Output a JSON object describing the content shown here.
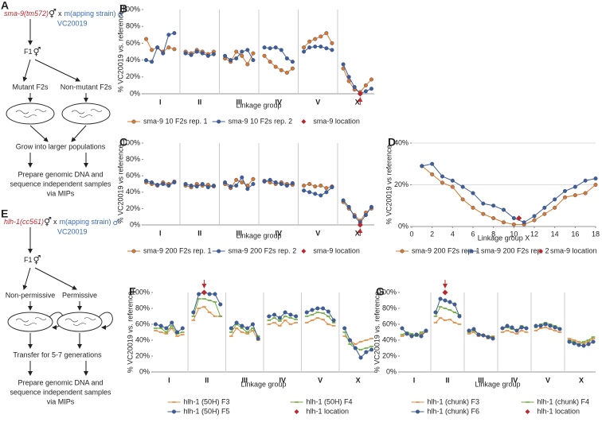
{
  "diagrams": [
    {
      "panel": "A",
      "strain": "sma-9(tm572)",
      "herm_symbol": "⚥",
      "cross": "x",
      "mapping": "m(apping strain)",
      "male_symbol": "♂",
      "mapping_strain": "VC20019",
      "f1": "F1",
      "left": "Mutant F2s",
      "right": "Non-mutant F2s",
      "step1": "Grow into larger populations",
      "step2": [
        "Prepare genomic DNA and",
        "sequence independent samples",
        "via MIPs"
      ]
    },
    {
      "panel": "E",
      "strain": "hlh-1(cc561)",
      "herm_symbol": "⚥",
      "cross": "x",
      "mapping": "m(apping strain)",
      "male_symbol": "♂",
      "mapping_strain": "VC20019",
      "f1": "F1",
      "left": "Non-permissive",
      "right": "Permissive",
      "step1": "Transfer for 5-7 generations",
      "step2": [
        "Prepare genomic DNA and",
        "sequence independent samples",
        "via MIPs"
      ]
    }
  ],
  "chart_data": [
    {
      "panel": "B",
      "type": "line",
      "ylabel": "% VC20019 vs. reference",
      "xlabel": "Linkage group",
      "groups": [
        "I",
        "II",
        "III",
        "IV",
        "V",
        "X"
      ],
      "ylim": [
        0,
        100
      ],
      "yticks": [
        {
          "value": 0,
          "label": "0%"
        },
        {
          "value": 20,
          "label": "20%"
        },
        {
          "value": 40,
          "label": "40%"
        },
        {
          "value": 60,
          "label": "60%"
        },
        {
          "value": 80,
          "label": "80%"
        },
        {
          "value": 100,
          "label": "100%"
        }
      ],
      "grid": false,
      "series": [
        {
          "name": "sma-9 10 F2s rep. 1",
          "color": "#d9772b",
          "marker": "circle",
          "values": [
            65,
            52,
            55,
            50,
            55,
            53,
            null,
            50,
            48,
            52,
            50,
            47,
            50,
            null,
            42,
            38,
            50,
            45,
            35,
            48,
            null,
            45,
            38,
            32,
            28,
            25,
            30,
            null,
            55,
            62,
            65,
            68,
            72,
            60,
            null,
            30,
            15,
            5,
            2,
            10,
            17
          ]
        },
        {
          "name": "sma-9 10 F2s rep. 2",
          "color": "#3f5e98",
          "marker": "circle",
          "values": [
            40,
            38,
            55,
            48,
            70,
            72,
            null,
            48,
            46,
            50,
            48,
            45,
            47,
            null,
            45,
            40,
            42,
            50,
            52,
            40,
            null,
            55,
            54,
            55,
            52,
            42,
            38,
            null,
            50,
            55,
            56,
            56,
            54,
            52,
            null,
            35,
            20,
            8,
            0,
            3,
            6
          ]
        },
        {
          "name": "sma-9 location",
          "color": "#b8282e",
          "marker": "diamond",
          "x": [
            38
          ],
          "values": [
            0
          ]
        }
      ]
    },
    {
      "panel": "C",
      "type": "line",
      "ylabel": "% VC20019 vs reference",
      "xlabel": "Linkage group",
      "groups": [
        "I",
        "II",
        "III",
        "IV",
        "V",
        "X"
      ],
      "ylim": [
        0,
        100
      ],
      "yticks": [
        {
          "value": 0,
          "label": "0%"
        },
        {
          "value": 20,
          "label": "20%"
        },
        {
          "value": 40,
          "label": "40%"
        },
        {
          "value": 60,
          "label": "60%"
        },
        {
          "value": 80,
          "label": "80%"
        },
        {
          "value": 100,
          "label": "100%"
        }
      ],
      "grid": false,
      "series": [
        {
          "name": "sma-9 200 F2s rep. 1",
          "color": "#d9772b",
          "marker": "circle",
          "values": [
            52,
            50,
            48,
            52,
            50,
            53,
            null,
            48,
            46,
            50,
            48,
            49,
            47,
            null,
            50,
            45,
            55,
            52,
            48,
            56,
            null,
            54,
            52,
            50,
            52,
            50,
            49,
            null,
            48,
            50,
            47,
            48,
            45,
            47,
            null,
            28,
            20,
            12,
            5,
            15,
            20
          ]
        },
        {
          "name": "sma-9 200 F2s rep. 2",
          "color": "#3f5e98",
          "marker": "circle",
          "values": [
            54,
            52,
            49,
            50,
            48,
            52,
            null,
            50,
            48,
            47,
            50,
            46,
            48,
            null,
            52,
            47,
            48,
            58,
            44,
            50,
            null,
            53,
            55,
            52,
            50,
            48,
            51,
            null,
            42,
            40,
            38,
            36,
            40,
            46,
            null,
            30,
            22,
            10,
            3,
            12,
            22
          ]
        },
        {
          "name": "sma-9 location",
          "color": "#b8282e",
          "marker": "diamond",
          "x": [
            38
          ],
          "values": [
            0
          ]
        }
      ]
    },
    {
      "panel": "D",
      "type": "line",
      "ylabel": "% VC20019 vs reference",
      "xlabel": "Linkage group X",
      "xlim": [
        0,
        18
      ],
      "xticks": [
        0,
        2,
        4,
        6,
        8,
        10,
        12,
        14,
        16,
        18
      ],
      "ylim": [
        0,
        40
      ],
      "yticks": [
        {
          "value": 0,
          "label": "0%"
        },
        {
          "value": 20,
          "label": "20%"
        },
        {
          "value": 40,
          "label": "40%"
        }
      ],
      "grid": true,
      "series": [
        {
          "name": "sma-9 200 F2s rep. 1",
          "color": "#d9772b",
          "marker": "circle",
          "x": [
            1,
            2,
            3,
            4,
            5,
            6,
            7,
            8,
            9,
            10,
            11,
            12,
            13,
            14,
            15,
            16,
            17,
            18
          ],
          "values": [
            29,
            25,
            21,
            19,
            13,
            9,
            6,
            4,
            2,
            1,
            1,
            3,
            6,
            9,
            14,
            15,
            16,
            20
          ]
        },
        {
          "name": "sma-9 200 F2s rep. 2",
          "color": "#3f5e98",
          "marker": "circle",
          "x": [
            1,
            2,
            3,
            4,
            5,
            6,
            7,
            8,
            9,
            10,
            11,
            12,
            13,
            14,
            15,
            16,
            17,
            18
          ],
          "values": [
            29,
            30,
            24,
            22,
            19,
            16,
            11,
            10,
            8,
            4,
            2,
            5,
            9,
            13,
            17,
            19,
            22,
            23
          ]
        },
        {
          "name": "sma-9 location",
          "color": "#b8282e",
          "marker": "diamond",
          "x": [
            10.5
          ],
          "values": [
            4
          ]
        }
      ]
    },
    {
      "panel": "F",
      "type": "line",
      "ylabel": "% VC20019 vs. reference",
      "xlabel": "Linkage group",
      "groups": [
        "I",
        "II",
        "III",
        "IV",
        "V",
        "X"
      ],
      "ylim": [
        0,
        100
      ],
      "yticks": [
        {
          "value": 0,
          "label": "0%"
        },
        {
          "value": 20,
          "label": "20%"
        },
        {
          "value": 40,
          "label": "40%"
        },
        {
          "value": 60,
          "label": "60%"
        },
        {
          "value": 80,
          "label": "80%"
        },
        {
          "value": 100,
          "label": "100%"
        }
      ],
      "grid": false,
      "series": [
        {
          "name": "hlh-1 (50H) F3",
          "color": "#e8883a",
          "marker": "dash",
          "values": [
            52,
            50,
            48,
            55,
            45,
            47,
            null,
            65,
            80,
            82,
            75,
            70,
            70,
            null,
            45,
            55,
            50,
            48,
            52,
            40,
            null,
            60,
            62,
            58,
            65,
            60,
            62,
            null,
            62,
            65,
            68,
            66,
            60,
            58,
            null,
            45,
            40,
            35,
            38,
            40,
            42
          ]
        },
        {
          "name": "hlh-1 (50H) F4",
          "color": "#6aac3a",
          "marker": "dash",
          "values": [
            55,
            55,
            50,
            58,
            48,
            50,
            null,
            70,
            92,
            92,
            90,
            88,
            70,
            null,
            50,
            60,
            55,
            50,
            55,
            45,
            null,
            65,
            68,
            64,
            70,
            68,
            66,
            null,
            70,
            72,
            75,
            74,
            70,
            62,
            null,
            50,
            35,
            30,
            28,
            30,
            32
          ]
        },
        {
          "name": "hlh-1 (50H) F5",
          "color": "#3f5e98",
          "marker": "circle",
          "values": [
            60,
            58,
            55,
            62,
            50,
            55,
            null,
            75,
            98,
            100,
            98,
            98,
            85,
            null,
            55,
            62,
            58,
            55,
            60,
            42,
            null,
            70,
            72,
            68,
            75,
            72,
            70,
            null,
            75,
            78,
            80,
            80,
            76,
            65,
            null,
            55,
            40,
            30,
            18,
            25,
            28
          ]
        },
        {
          "name": "hlh-1 location",
          "color": "#b8282e",
          "marker": "diamond",
          "x": [
            9
          ],
          "values": [
            100
          ]
        }
      ]
    },
    {
      "panel": "G",
      "type": "line",
      "ylabel": "% VC20019 vs. reference",
      "xlabel": "Linkage group",
      "groups": [
        "I",
        "II",
        "III",
        "IV",
        "V",
        "X"
      ],
      "ylim": [
        0,
        100
      ],
      "yticks": [
        {
          "value": 0,
          "label": "0%"
        },
        {
          "value": 20,
          "label": "20%"
        },
        {
          "value": 40,
          "label": "40%"
        },
        {
          "value": 60,
          "label": "60%"
        },
        {
          "value": 80,
          "label": "80%"
        },
        {
          "value": 100,
          "label": "100%"
        }
      ],
      "grid": false,
      "series": [
        {
          "name": "hlh-1 (chunk) F3",
          "color": "#e8883a",
          "marker": "dash",
          "values": [
            45,
            48,
            46,
            47,
            48,
            50,
            null,
            62,
            68,
            65,
            66,
            62,
            60,
            null,
            48,
            50,
            45,
            47,
            42,
            45,
            null,
            50,
            52,
            50,
            48,
            52,
            50,
            null,
            52,
            55,
            56,
            54,
            52,
            50,
            null,
            42,
            40,
            38,
            36,
            38,
            42
          ]
        },
        {
          "name": "hlh-1 (chunk) F4",
          "color": "#6aac3a",
          "marker": "dash",
          "values": [
            47,
            50,
            48,
            45,
            50,
            52,
            null,
            70,
            82,
            80,
            78,
            75,
            72,
            null,
            50,
            52,
            48,
            46,
            45,
            44,
            null,
            55,
            56,
            54,
            52,
            58,
            55,
            null,
            56,
            60,
            62,
            60,
            58,
            55,
            null,
            40,
            38,
            35,
            38,
            40,
            44
          ]
        },
        {
          "name": "hlh-1 (chunk) F6",
          "color": "#3f5e98",
          "marker": "circle",
          "values": [
            55,
            48,
            45,
            47,
            45,
            52,
            null,
            75,
            92,
            90,
            88,
            85,
            70,
            null,
            52,
            54,
            47,
            46,
            44,
            42,
            null,
            55,
            58,
            56,
            52,
            56,
            55,
            null,
            58,
            58,
            60,
            58,
            56,
            54,
            null,
            38,
            36,
            34,
            33,
            35,
            38
          ]
        },
        {
          "name": "hlh-1 location",
          "color": "#b8282e",
          "marker": "diamond",
          "x": [
            9
          ],
          "values": [
            100
          ]
        }
      ]
    }
  ]
}
